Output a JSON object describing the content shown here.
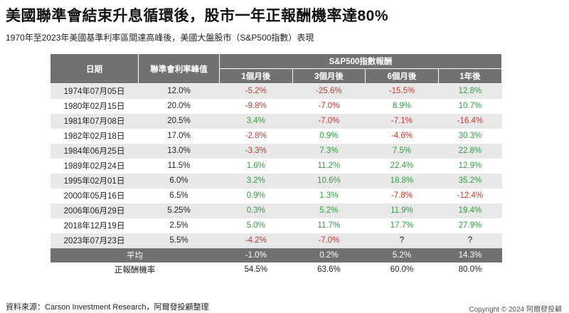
{
  "title": "美國聯準會結束升息循環後，股市一年正報酬機率達80%",
  "subtitle": "1970年至2023年美國基準利率區間達高峰後，美國大盤股市（S&P500指數）表現",
  "table": {
    "col_date": "日期",
    "col_rate": "聯準會利率峰值",
    "col_group": "S&P500指數報酬",
    "col_1m": "1個月後",
    "col_3m": "3個月後",
    "col_6m": "6個月後",
    "col_1y": "1年後",
    "rows": [
      {
        "date": "1974年07月05日",
        "rate": "12.0%",
        "m1": "-5.2%",
        "m3": "-25.6%",
        "m6": "-15.5%",
        "y1": "12.8%"
      },
      {
        "date": "1980年02月15日",
        "rate": "20.0%",
        "m1": "-9.8%",
        "m3": "-7.0%",
        "m6": "8.9%",
        "y1": "10.7%"
      },
      {
        "date": "1981年07月08日",
        "rate": "20.5%",
        "m1": "3.4%",
        "m3": "-7.0%",
        "m6": "-7.1%",
        "y1": "-16.4%"
      },
      {
        "date": "1982年02月18日",
        "rate": "17.0%",
        "m1": "-2.8%",
        "m3": "0.9%",
        "m6": "-4.6%",
        "y1": "30.3%"
      },
      {
        "date": "1984年06月25日",
        "rate": "13.0%",
        "m1": "-3.3%",
        "m3": "7.3%",
        "m6": "7.5%",
        "y1": "22.8%"
      },
      {
        "date": "1989年02月24日",
        "rate": "11.5%",
        "m1": "1.6%",
        "m3": "11.2%",
        "m6": "22.4%",
        "y1": "12.9%"
      },
      {
        "date": "1995年02月01日",
        "rate": "6.0%",
        "m1": "3.2%",
        "m3": "10.6%",
        "m6": "18.8%",
        "y1": "35.2%"
      },
      {
        "date": "2000年05月16日",
        "rate": "6.5%",
        "m1": "0.9%",
        "m3": "1.3%",
        "m6": "-7.8%",
        "y1": "-12.4%"
      },
      {
        "date": "2006年06月29日",
        "rate": "5.25%",
        "m1": "0.3%",
        "m3": "5.2%",
        "m6": "11.9%",
        "y1": "19.4%"
      },
      {
        "date": "2018年12月19日",
        "rate": "2.5%",
        "m1": "5.0%",
        "m3": "11.7%",
        "m6": "17.7%",
        "y1": "27.9%"
      },
      {
        "date": "2023年07月23日",
        "rate": "5.5%",
        "m1": "-4.2%",
        "m3": "-7.0%",
        "m6": "?",
        "y1": "?"
      }
    ],
    "average": {
      "label": "平均",
      "m1": "-1.0%",
      "m3": "0.2%",
      "m6": "5.2%",
      "y1": "14.3%"
    },
    "win_rate": {
      "label": "正報酬機率",
      "m1": "54.5%",
      "m3": "63.6%",
      "m6": "60.0%",
      "y1": "80.0%"
    }
  },
  "colors": {
    "header_bg": "#717171",
    "negative": "#c0392b",
    "positive": "#2e9e3f",
    "stripe": "#e8e8e8"
  },
  "source": "資料來源：Carson Investment Research，阿爾發投顧整理",
  "copyright": "Copyright © 2024 阿爾發投顧"
}
